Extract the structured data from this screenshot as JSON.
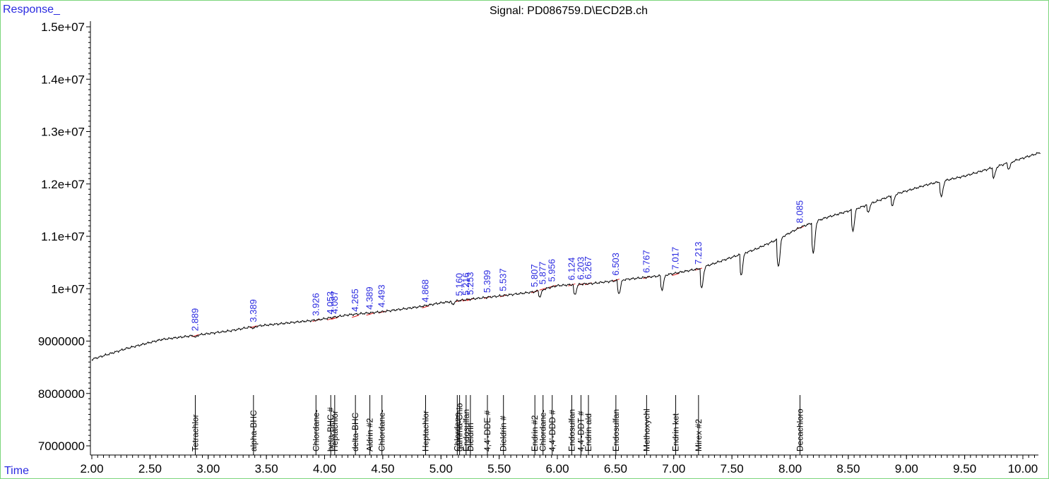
{
  "header": {
    "y_title": "Response_",
    "x_title": "Time",
    "signal": "Signal: PD086759.D\\ECD2B.ch"
  },
  "colors": {
    "frame": "#7cd67c",
    "axis_labels": "#2a2ae0",
    "peak_labels": "#2a2ae0",
    "trace": "#000000",
    "integration_baseline": "#e02020"
  },
  "chart_data": {
    "type": "line",
    "title": "Signal: PD086759.D\\ECD2B.ch",
    "xlabel": "Time",
    "ylabel": "Response_",
    "xlim": [
      2.0,
      10.15
    ],
    "ylim": [
      6850000,
      15050000
    ],
    "x_ticks": [
      2.0,
      2.5,
      3.0,
      3.5,
      4.0,
      4.5,
      5.0,
      5.5,
      6.0,
      6.5,
      7.0,
      7.5,
      8.0,
      8.5,
      9.0,
      9.5,
      10.0
    ],
    "x_tick_labels": [
      "2.00",
      "2.50",
      "3.00",
      "3.50",
      "4.00",
      "4.50",
      "5.00",
      "5.50",
      "6.00",
      "6.50",
      "7.00",
      "7.50",
      "8.00",
      "8.50",
      "9.00",
      "9.50",
      "10.00"
    ],
    "y_ticks": [
      7000000,
      8000000,
      9000000,
      10000000,
      11000000,
      12000000,
      13000000,
      14000000,
      15000000
    ],
    "y_tick_labels": [
      "7000000",
      "8000000",
      "9000000",
      "1e+07",
      "1.1e+07",
      "1.2e+07",
      "1.3e+07",
      "1.4e+07",
      "1.5e+07"
    ],
    "grid": false,
    "baseline_points": [
      [
        2.0,
        8650000
      ],
      [
        2.3,
        8860000
      ],
      [
        2.6,
        9030000
      ],
      [
        2.889,
        9110000
      ],
      [
        3.2,
        9200000
      ],
      [
        3.389,
        9280000
      ],
      [
        3.7,
        9350000
      ],
      [
        3.926,
        9400000
      ],
      [
        4.2,
        9500000
      ],
      [
        4.493,
        9560000
      ],
      [
        4.8,
        9650000
      ],
      [
        5.0,
        9730000
      ],
      [
        5.25,
        9800000
      ],
      [
        5.5,
        9860000
      ],
      [
        5.8,
        9940000
      ],
      [
        6.0,
        10060000
      ],
      [
        6.3,
        10100000
      ],
      [
        6.6,
        10180000
      ],
      [
        6.9,
        10250000
      ],
      [
        7.213,
        10380000
      ],
      [
        7.5,
        10600000
      ],
      [
        7.7,
        10750000
      ],
      [
        7.9,
        10950000
      ],
      [
        8.085,
        11170000
      ],
      [
        8.3,
        11350000
      ],
      [
        8.6,
        11550000
      ],
      [
        8.9,
        11800000
      ],
      [
        9.2,
        12000000
      ],
      [
        9.5,
        12150000
      ],
      [
        9.8,
        12350000
      ],
      [
        10.15,
        12600000
      ]
    ],
    "dips": [
      {
        "t": 2.889,
        "depth": 40000
      },
      {
        "t": 3.389,
        "depth": 40000
      },
      {
        "t": 5.1,
        "depth": 60000
      },
      {
        "t": 5.85,
        "depth": 120000
      },
      {
        "t": 6.15,
        "depth": 200000
      },
      {
        "t": 6.53,
        "depth": 250000
      },
      {
        "t": 6.9,
        "depth": 270000
      },
      {
        "t": 7.24,
        "depth": 400000
      },
      {
        "t": 7.58,
        "depth": 400000
      },
      {
        "t": 7.9,
        "depth": 520000
      },
      {
        "t": 8.2,
        "depth": 600000
      },
      {
        "t": 8.54,
        "depth": 400000
      },
      {
        "t": 8.67,
        "depth": 150000
      },
      {
        "t": 8.88,
        "depth": 200000
      },
      {
        "t": 9.3,
        "depth": 300000
      },
      {
        "t": 9.75,
        "depth": 200000
      },
      {
        "t": 9.88,
        "depth": 120000
      }
    ],
    "peaks": [
      {
        "rt": "2.889",
        "t": 2.889,
        "y": 9110000
      },
      {
        "rt": "3.389",
        "t": 3.389,
        "y": 9280000
      },
      {
        "rt": "3.926",
        "t": 3.926,
        "y": 9400000
      },
      {
        "rt": "4.053",
        "t": 4.053,
        "y": 9430000
      },
      {
        "rt": "4.087",
        "t": 4.087,
        "y": 9440000
      },
      {
        "rt": "4.265",
        "t": 4.265,
        "y": 9480000
      },
      {
        "rt": "4.389",
        "t": 4.389,
        "y": 9520000
      },
      {
        "rt": "4.493",
        "t": 4.493,
        "y": 9560000
      },
      {
        "rt": "4.868",
        "t": 4.868,
        "y": 9660000
      },
      {
        "rt": "5.160",
        "t": 5.16,
        "y": 9780000
      },
      {
        "rt": "5.216",
        "t": 5.216,
        "y": 9790000
      },
      {
        "rt": "5.253",
        "t": 5.253,
        "y": 9800000
      },
      {
        "rt": "5.399",
        "t": 5.399,
        "y": 9840000
      },
      {
        "rt": "5.537",
        "t": 5.537,
        "y": 9870000
      },
      {
        "rt": "5.807",
        "t": 5.807,
        "y": 9950000
      },
      {
        "rt": "5.877",
        "t": 5.877,
        "y": 10000000
      },
      {
        "rt": "5.956",
        "t": 5.956,
        "y": 10050000
      },
      {
        "rt": "6.124",
        "t": 6.124,
        "y": 10080000
      },
      {
        "rt": "6.203",
        "t": 6.203,
        "y": 10090000
      },
      {
        "rt": "6.267",
        "t": 6.267,
        "y": 10100000
      },
      {
        "rt": "6.503",
        "t": 6.503,
        "y": 10170000
      },
      {
        "rt": "6.767",
        "t": 6.767,
        "y": 10220000
      },
      {
        "rt": "7.017",
        "t": 7.017,
        "y": 10280000
      },
      {
        "rt": "7.213",
        "t": 7.213,
        "y": 10380000
      },
      {
        "rt": "8.085",
        "t": 8.085,
        "y": 11170000
      }
    ],
    "compounds": [
      {
        "name": "Tetrachlor",
        "t": 2.889
      },
      {
        "name": "alpha-BHC",
        "t": 3.389
      },
      {
        "name": "Chlordane-",
        "t": 3.926
      },
      {
        "name": "beta-BHC #",
        "t": 4.053
      },
      {
        "name": "Heptachlor",
        "t": 4.087
      },
      {
        "name": "delta-BHC",
        "t": 4.265
      },
      {
        "name": "Aldrin #2",
        "t": 4.389
      },
      {
        "name": "Chlordane-",
        "t": 4.493
      },
      {
        "name": "Heptachlor",
        "t": 4.868
      },
      {
        "name": "Chlordane",
        "t": 5.14
      },
      {
        "name": "gamma-Chlo",
        "t": 5.16
      },
      {
        "name": "Endosulfan",
        "t": 5.216
      },
      {
        "name": "Dieldrin",
        "t": 5.253
      },
      {
        "name": "4,4'-DDE #",
        "t": 5.399
      },
      {
        "name": "Dieldrin #",
        "t": 5.537
      },
      {
        "name": "Endrin #2",
        "t": 5.807
      },
      {
        "name": "Chlordane-",
        "t": 5.877
      },
      {
        "name": "4,4'-DDD #",
        "t": 5.956
      },
      {
        "name": "Endosulfan",
        "t": 6.124
      },
      {
        "name": "4,4'-DDT #",
        "t": 6.203
      },
      {
        "name": "Endrin ald",
        "t": 6.267
      },
      {
        "name": "Endosulfan",
        "t": 6.503
      },
      {
        "name": "Methoxychl",
        "t": 6.767
      },
      {
        "name": "Endrin ket",
        "t": 7.017
      },
      {
        "name": "Mirex #2",
        "t": 7.213
      },
      {
        "name": "Decachloro",
        "t": 8.085
      }
    ]
  }
}
